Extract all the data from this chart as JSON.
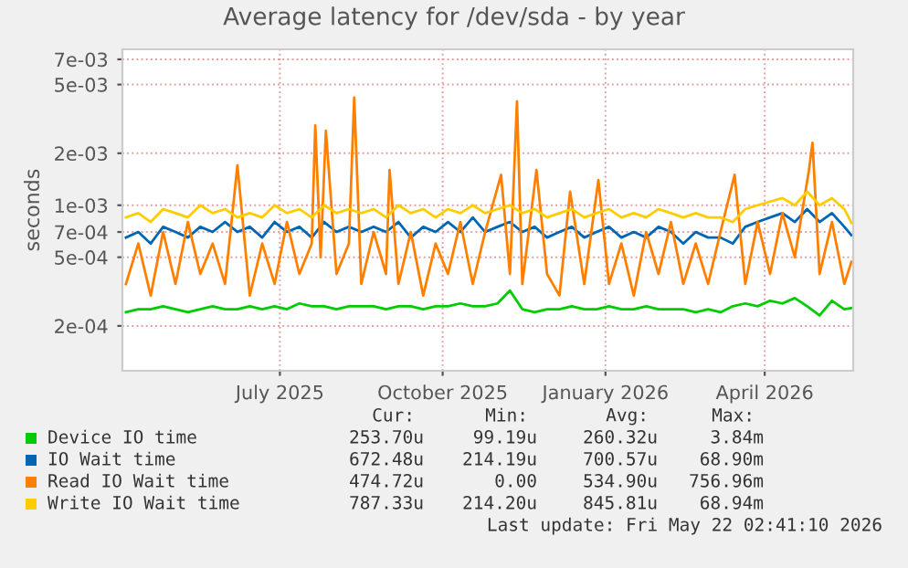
{
  "chart_data": {
    "type": "line",
    "title": "Average latency for /dev/sda - by year",
    "ylabel": "seconds",
    "log": "y",
    "grid": true,
    "legend": "bottom",
    "marker": "none",
    "line_style": "solid",
    "xlim": [
      "2025-04-03",
      "2026-05-21"
    ],
    "xticks": [
      {
        "value": "2025-07-01",
        "label": "July 2025"
      },
      {
        "value": "2025-10-01",
        "label": "October 2025"
      },
      {
        "value": "2026-01-01",
        "label": "January 2026"
      },
      {
        "value": "2026-04-01",
        "label": "April 2026"
      }
    ],
    "ylim": [
      0.00011,
      0.008
    ],
    "yticks": [
      {
        "value": 0.0002,
        "label": "2e-04"
      },
      {
        "value": 0.0005,
        "label": "5e-04"
      },
      {
        "value": 0.0007,
        "label": "7e-04"
      },
      {
        "value": 0.001,
        "label": "1e-03"
      },
      {
        "value": 0.002,
        "label": "2e-03"
      },
      {
        "value": 0.005,
        "label": "5e-03"
      },
      {
        "value": 0.007,
        "label": "7e-03"
      }
    ],
    "x": [
      "2025-04-05",
      "2025-04-12",
      "2025-04-19",
      "2025-04-26",
      "2025-05-03",
      "2025-05-10",
      "2025-05-17",
      "2025-05-24",
      "2025-05-31",
      "2025-06-07",
      "2025-06-14",
      "2025-06-21",
      "2025-06-28",
      "2025-07-05",
      "2025-07-12",
      "2025-07-19",
      "2025-07-26",
      "2025-08-02",
      "2025-08-09",
      "2025-08-16",
      "2025-08-23",
      "2025-08-30",
      "2025-09-06",
      "2025-09-13",
      "2025-09-20",
      "2025-09-27",
      "2025-10-04",
      "2025-10-11",
      "2025-10-18",
      "2025-10-25",
      "2025-11-01",
      "2025-11-08",
      "2025-11-15",
      "2025-11-22",
      "2025-11-29",
      "2025-12-06",
      "2025-12-13",
      "2025-12-20",
      "2025-12-27",
      "2026-01-03",
      "2026-01-10",
      "2026-01-17",
      "2026-01-24",
      "2026-01-31",
      "2026-02-07",
      "2026-02-14",
      "2026-02-21",
      "2026-02-28",
      "2026-03-07",
      "2026-03-14",
      "2026-03-21",
      "2026-03-28",
      "2026-04-04",
      "2026-04-11",
      "2026-04-18",
      "2026-04-25",
      "2026-05-02",
      "2026-05-09",
      "2026-05-16",
      "2026-05-20"
    ],
    "series": [
      {
        "name": "Device IO time",
        "color": "#00cc00",
        "values": [
          0.00024,
          0.00025,
          0.00025,
          0.00026,
          0.00025,
          0.00024,
          0.00025,
          0.00026,
          0.00025,
          0.00025,
          0.00026,
          0.00025,
          0.00026,
          0.00025,
          0.00027,
          0.00026,
          0.00026,
          0.00025,
          0.00026,
          0.00026,
          0.00026,
          0.00025,
          0.00026,
          0.00026,
          0.00025,
          0.00026,
          0.00026,
          0.00027,
          0.00026,
          0.00026,
          0.00027,
          0.00032,
          0.00025,
          0.00024,
          0.00025,
          0.00025,
          0.00026,
          0.00025,
          0.00025,
          0.00026,
          0.00025,
          0.00025,
          0.00026,
          0.00025,
          0.00025,
          0.00025,
          0.00024,
          0.00025,
          0.00024,
          0.00026,
          0.00027,
          0.00026,
          0.00028,
          0.00027,
          0.00029,
          0.00026,
          0.00023,
          0.00028,
          0.00025,
          0.000254
        ]
      },
      {
        "name": "IO Wait time",
        "color": "#0066b3",
        "values": [
          0.00065,
          0.0007,
          0.0006,
          0.00075,
          0.0007,
          0.00065,
          0.00075,
          0.0007,
          0.0008,
          0.0007,
          0.00075,
          0.00065,
          0.0008,
          0.0007,
          0.00075,
          0.00065,
          0.0008,
          0.0007,
          0.00075,
          0.0007,
          0.00075,
          0.0007,
          0.0008,
          0.00065,
          0.00075,
          0.0007,
          0.0008,
          0.0007,
          0.00085,
          0.0007,
          0.00075,
          0.0008,
          0.0007,
          0.00075,
          0.00065,
          0.0007,
          0.00075,
          0.00065,
          0.0007,
          0.00075,
          0.00065,
          0.0007,
          0.00065,
          0.00075,
          0.0007,
          0.0006,
          0.0007,
          0.00065,
          0.00065,
          0.0006,
          0.00075,
          0.0008,
          0.00085,
          0.0009,
          0.0008,
          0.00095,
          0.0008,
          0.0009,
          0.00075,
          0.00067
        ]
      },
      {
        "name": "Read IO Wait time",
        "color": "#ff8000",
        "x": [
          "2025-04-05",
          "2025-04-12",
          "2025-04-19",
          "2025-04-26",
          "2025-05-03",
          "2025-05-10",
          "2025-05-17",
          "2025-05-24",
          "2025-05-31",
          "2025-06-07",
          "2025-06-14",
          "2025-06-21",
          "2025-06-28",
          "2025-07-05",
          "2025-07-12",
          "2025-07-19",
          "2025-07-21",
          "2025-07-24",
          "2025-07-27",
          "2025-08-02",
          "2025-08-09",
          "2025-08-12",
          "2025-08-16",
          "2025-08-23",
          "2025-08-30",
          "2025-09-01",
          "2025-09-06",
          "2025-09-13",
          "2025-09-20",
          "2025-09-27",
          "2025-10-04",
          "2025-10-11",
          "2025-10-18",
          "2025-10-25",
          "2025-11-03",
          "2025-11-08",
          "2025-11-12",
          "2025-11-15",
          "2025-11-23",
          "2025-11-29",
          "2025-12-06",
          "2025-12-12",
          "2025-12-20",
          "2025-12-28",
          "2026-01-03",
          "2026-01-10",
          "2026-01-17",
          "2026-01-24",
          "2026-01-31",
          "2026-02-07",
          "2026-02-14",
          "2026-02-21",
          "2026-02-28",
          "2026-03-07",
          "2026-03-15",
          "2026-03-21",
          "2026-03-28",
          "2026-04-04",
          "2026-04-11",
          "2026-04-18",
          "2026-04-26",
          "2026-04-28",
          "2026-05-02",
          "2026-05-09",
          "2026-05-16",
          "2026-05-20"
        ],
        "values": [
          0.00035,
          0.0006,
          0.0003,
          0.0007,
          0.00035,
          0.0008,
          0.0004,
          0.0006,
          0.00035,
          0.0017,
          0.0003,
          0.0006,
          0.00035,
          0.0008,
          0.0004,
          0.0006,
          0.0029,
          0.0005,
          0.0027,
          0.0004,
          0.0006,
          0.0042,
          0.00035,
          0.0007,
          0.0004,
          0.0016,
          0.00035,
          0.0007,
          0.0003,
          0.0006,
          0.0004,
          0.0008,
          0.00035,
          0.0007,
          0.0015,
          0.0004,
          0.004,
          0.00035,
          0.0016,
          0.0004,
          0.0003,
          0.0012,
          0.00035,
          0.0014,
          0.00035,
          0.0006,
          0.0003,
          0.0007,
          0.0004,
          0.0008,
          0.00035,
          0.0006,
          0.00035,
          0.0007,
          0.0015,
          0.00035,
          0.0008,
          0.0004,
          0.0009,
          0.0005,
          0.0016,
          0.0023,
          0.0004,
          0.0008,
          0.00035,
          0.00047
        ]
      },
      {
        "name": "Write IO Wait time",
        "color": "#ffcc00",
        "values": [
          0.00085,
          0.0009,
          0.0008,
          0.00095,
          0.0009,
          0.00085,
          0.001,
          0.0009,
          0.00095,
          0.00085,
          0.0009,
          0.00085,
          0.001,
          0.0009,
          0.00095,
          0.00085,
          0.001,
          0.0009,
          0.00095,
          0.0009,
          0.00095,
          0.00085,
          0.001,
          0.0009,
          0.00095,
          0.00085,
          0.00095,
          0.0009,
          0.001,
          0.0009,
          0.00095,
          0.001,
          0.0009,
          0.00095,
          0.00085,
          0.0009,
          0.00095,
          0.00085,
          0.0009,
          0.00095,
          0.00085,
          0.0009,
          0.00085,
          0.00095,
          0.0009,
          0.00085,
          0.0009,
          0.00085,
          0.00085,
          0.0008,
          0.00095,
          0.001,
          0.00105,
          0.0011,
          0.001,
          0.0012,
          0.001,
          0.0011,
          0.00095,
          0.00079
        ]
      }
    ],
    "annotations": [
      "Cur:",
      "Min:",
      "Avg:",
      "Max:",
      "253.70u",
      "99.19u",
      "260.32u",
      "3.84m",
      "672.48u",
      "214.19u",
      "700.57u",
      "68.90m",
      "474.72u",
      "0.00",
      "534.90u",
      "756.96m",
      "787.33u",
      "214.20u",
      "845.81u",
      "68.94m",
      "Last update: Fri May 22 02:41:10 2026"
    ]
  }
}
